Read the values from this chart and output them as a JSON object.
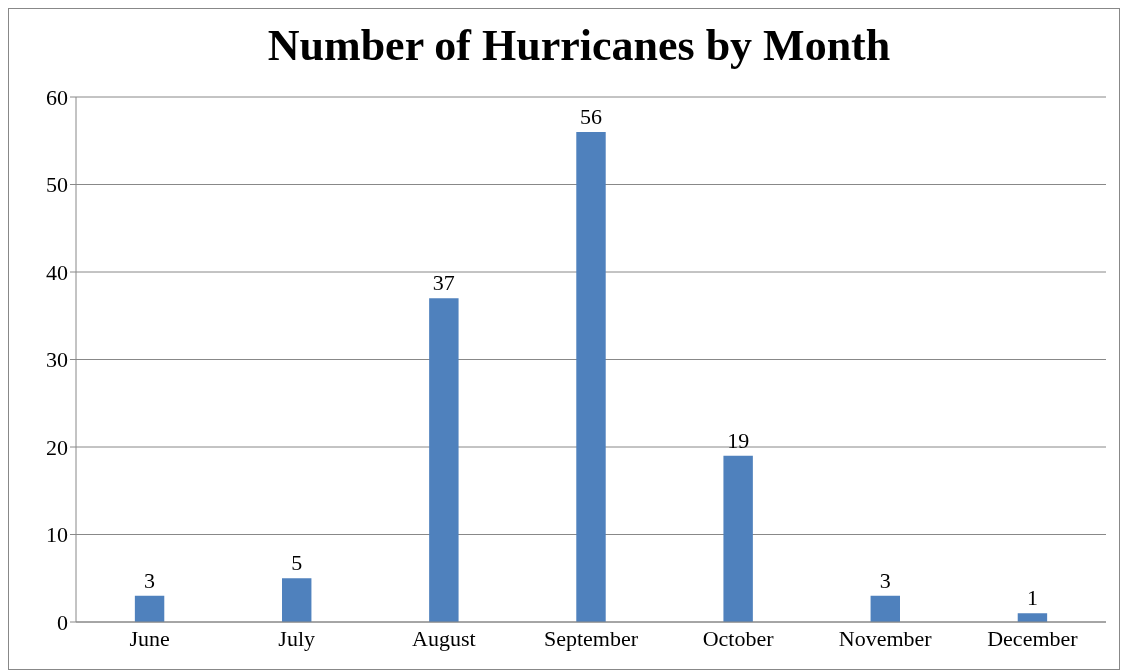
{
  "chart_data": {
    "type": "bar",
    "title": "Number of Hurricanes by Month",
    "categories": [
      "June",
      "July",
      "August",
      "September",
      "October",
      "November",
      "December"
    ],
    "values": [
      3,
      5,
      37,
      56,
      19,
      3,
      1
    ],
    "color": "#4f81bd",
    "ylim": [
      0,
      60
    ],
    "yticks": [
      0,
      10,
      20,
      30,
      40,
      50,
      60
    ],
    "grid": "y",
    "data_labels": true
  }
}
